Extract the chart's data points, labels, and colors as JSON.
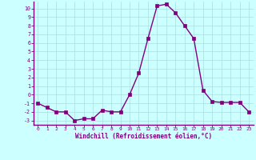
{
  "x": [
    0,
    1,
    2,
    3,
    4,
    5,
    6,
    7,
    8,
    9,
    10,
    11,
    12,
    13,
    14,
    15,
    16,
    17,
    18,
    19,
    20,
    21,
    22,
    23
  ],
  "y": [
    -1,
    -1.5,
    -2,
    -2,
    -3,
    -2.8,
    -2.8,
    -1.8,
    -2,
    -2,
    0,
    2.5,
    6.5,
    10.3,
    10.5,
    9.5,
    8,
    6.5,
    0.5,
    -0.8,
    -0.9,
    -0.9,
    -0.9,
    -2
  ],
  "line_color": "#800080",
  "marker_color": "#800080",
  "bg_color": "#ccffff",
  "grid_color": "#aadddd",
  "xlabel": "Windchill (Refroidissement éolien,°C)",
  "xlim": [
    -0.5,
    23.5
  ],
  "ylim": [
    -3.5,
    10.8
  ],
  "yticks": [
    -3,
    -2,
    -1,
    0,
    1,
    2,
    3,
    4,
    5,
    6,
    7,
    8,
    9,
    10
  ],
  "xticks": [
    0,
    1,
    2,
    3,
    4,
    5,
    6,
    7,
    8,
    9,
    10,
    11,
    12,
    13,
    14,
    15,
    16,
    17,
    18,
    19,
    20,
    21,
    22,
    23
  ],
  "xlabel_color": "#800080",
  "tick_color": "#800080",
  "spine_color": "#800080",
  "line_width": 1.0,
  "marker_size": 2.5
}
